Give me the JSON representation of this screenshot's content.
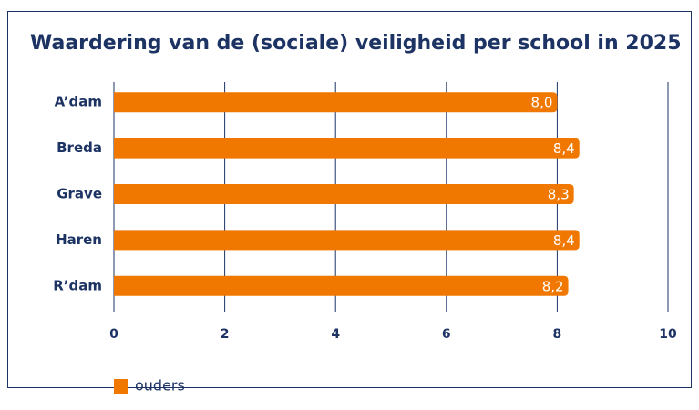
{
  "chart_data": {
    "type": "bar",
    "orientation": "horizontal",
    "title": "Waardering van de (sociale) veiligheid per school in 2025",
    "categories": [
      "A’dam",
      "Breda",
      "Grave",
      "Haren",
      "R’dam"
    ],
    "series": [
      {
        "name": "ouders",
        "color": "#f07800",
        "values": [
          8.0,
          8.4,
          8.3,
          8.4,
          8.2
        ],
        "value_labels": [
          "8,0",
          "8,4",
          "8,3",
          "8,4",
          "8,2"
        ]
      }
    ],
    "xlim": [
      0,
      10
    ],
    "xticks": [
      0,
      2,
      4,
      6,
      8,
      10
    ],
    "grid": true,
    "legend": "bottom-left"
  }
}
